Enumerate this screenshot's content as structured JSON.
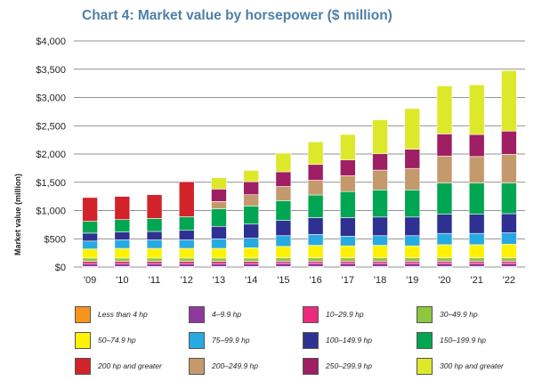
{
  "chart_data": {
    "type": "bar",
    "stacked": true,
    "title": "Chart 4: Market value by horsepower ($ million)",
    "xlabel": "",
    "ylabel": "Market value (million)",
    "ylim": [
      0,
      4000
    ],
    "yticks": [
      0,
      500,
      1000,
      1500,
      2000,
      2500,
      3000,
      3500,
      4000
    ],
    "ytick_labels": [
      "$0",
      "$500",
      "$1,000",
      "$1,500",
      "$2,000",
      "$2,500",
      "$3,000",
      "$3,500",
      "$4,000"
    ],
    "categories": [
      "'09",
      "'10",
      "'11",
      "'12",
      "'13",
      "'14",
      "'15",
      "'16",
      "'17",
      "'18",
      "'19",
      "'20",
      "'21",
      "'22"
    ],
    "series": [
      {
        "name": "Less than 4 hp",
        "color": "#f7941d",
        "values": [
          10,
          10,
          10,
          10,
          10,
          10,
          10,
          10,
          10,
          10,
          10,
          10,
          10,
          10
        ]
      },
      {
        "name": "4–9.9 hp",
        "color": "#8e3a9c",
        "values": [
          50,
          50,
          50,
          50,
          50,
          50,
          55,
          55,
          55,
          55,
          55,
          55,
          55,
          55
        ]
      },
      {
        "name": "10–29.9 hp",
        "color": "#ec2a7b",
        "values": [
          40,
          40,
          40,
          40,
          40,
          40,
          40,
          40,
          40,
          40,
          40,
          40,
          40,
          40
        ]
      },
      {
        "name": "30–49.9 hp",
        "color": "#8dc63f",
        "values": [
          60,
          60,
          60,
          60,
          60,
          60,
          60,
          60,
          60,
          60,
          60,
          60,
          60,
          60
        ]
      },
      {
        "name": "50–74.9 hp",
        "color": "#fff200",
        "values": [
          160,
          170,
          170,
          170,
          170,
          180,
          200,
          220,
          210,
          220,
          210,
          230,
          230,
          240
        ]
      },
      {
        "name": "75–99.9 hp",
        "color": "#27aae1",
        "values": [
          140,
          150,
          150,
          150,
          170,
          170,
          190,
          190,
          170,
          170,
          180,
          200,
          200,
          200
        ]
      },
      {
        "name": "100–149.9 hp",
        "color": "#2e3192",
        "values": [
          140,
          140,
          150,
          170,
          220,
          250,
          270,
          300,
          330,
          330,
          330,
          340,
          340,
          340
        ]
      },
      {
        "name": "150–199.9 hp",
        "color": "#00a651",
        "values": [
          210,
          220,
          230,
          240,
          310,
          320,
          350,
          400,
          460,
          480,
          480,
          550,
          550,
          540
        ]
      },
      {
        "name": "200 hp and greater",
        "color": "#d2232a",
        "values": [
          420,
          410,
          420,
          620,
          0,
          0,
          0,
          0,
          0,
          0,
          0,
          0,
          0,
          0
        ]
      },
      {
        "name": "200–249.9 hp",
        "color": "#c49a6c",
        "values": [
          0,
          0,
          0,
          0,
          130,
          200,
          250,
          260,
          280,
          350,
          380,
          480,
          470,
          510
        ]
      },
      {
        "name": "250–299.9 hp",
        "color": "#9e1f63",
        "values": [
          0,
          0,
          0,
          0,
          220,
          230,
          260,
          280,
          280,
          290,
          340,
          390,
          390,
          410
        ]
      },
      {
        "name": "300 hp and greater",
        "color": "#dde82b",
        "values": [
          0,
          0,
          0,
          0,
          200,
          200,
          330,
          400,
          450,
          600,
          720,
          850,
          880,
          1070
        ]
      }
    ],
    "legend": [
      "Less than 4 hp",
      "4–9.9 hp",
      "10–29.9 hp",
      "30–49.9 hp",
      "50–74.9 hp",
      "75–99.9 hp",
      "100–149.9 hp",
      "150–199.9 hp",
      "200 hp and greater",
      "200–249.9 hp",
      "250–299.9 hp",
      "300 hp and greater"
    ],
    "legend_position": "bottom"
  }
}
